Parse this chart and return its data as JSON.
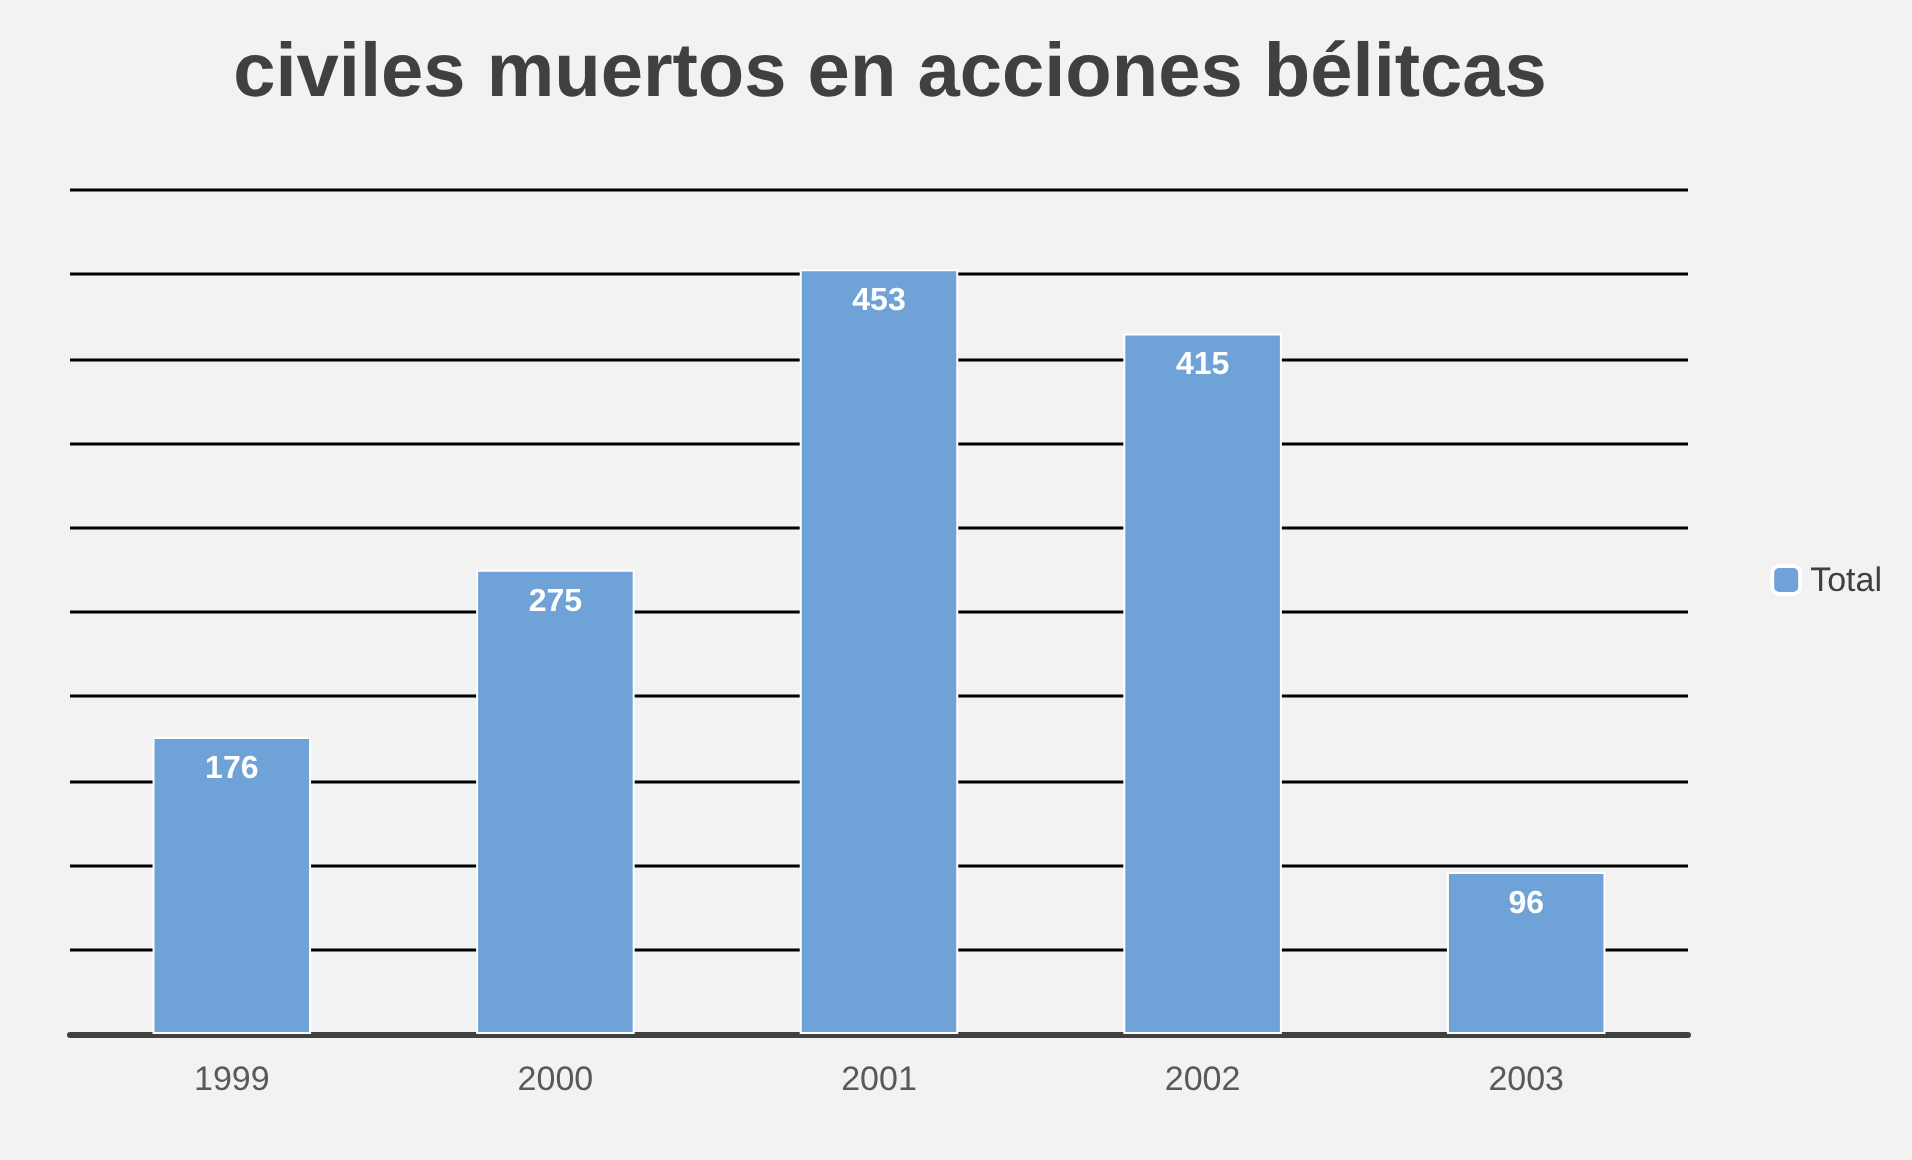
{
  "chart_data": {
    "type": "bar",
    "title": "civiles muertos en acciones bélitcas",
    "categories": [
      "1999",
      "2000",
      "2001",
      "2002",
      "2003"
    ],
    "series": [
      {
        "name": "Total",
        "color": "#6fa3d8",
        "values": [
          176,
          275,
          453,
          415,
          96
        ]
      }
    ],
    "ylim": [
      0,
      500
    ],
    "yticks": [
      {
        "value": 0,
        "label": null
      },
      {
        "value": 50,
        "label": null
      },
      {
        "value": 100,
        "label": null
      },
      {
        "value": 150,
        "label": null
      },
      {
        "value": 200,
        "label": null
      },
      {
        "value": 250,
        "label": null
      },
      {
        "value": 300,
        "label": null
      },
      {
        "value": 350,
        "label": null
      },
      {
        "value": 400,
        "label": null
      },
      {
        "value": 450,
        "label": null
      },
      {
        "value": 500,
        "label": null
      }
    ],
    "grid": "y",
    "tick_labels": "x",
    "legend": "right",
    "data_labels": true
  }
}
